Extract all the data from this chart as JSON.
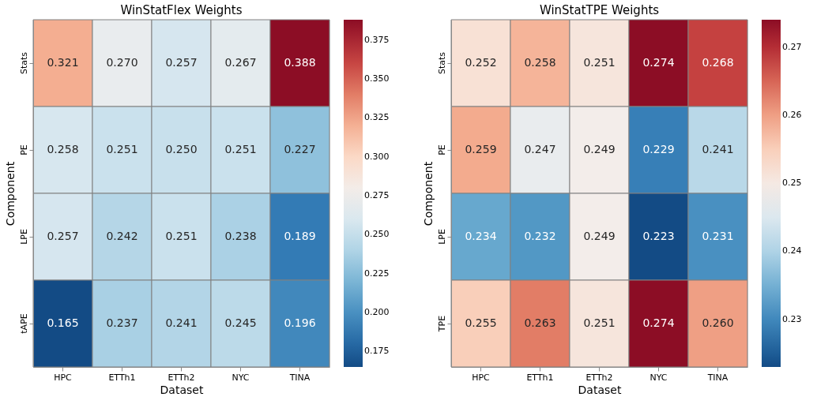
{
  "chart_data": [
    {
      "type": "heatmap",
      "title": "WinStatFlex Weights",
      "xlabel": "Dataset",
      "ylabel": "Component",
      "categories": [
        "HPC",
        "ETTh1",
        "ETTh2",
        "NYC",
        "TINA"
      ],
      "y_categories": [
        "Stats",
        "PE",
        "LPE",
        "tAPE"
      ],
      "cells": [
        [
          0.321,
          0.27,
          0.257,
          0.267,
          0.388
        ],
        [
          0.258,
          0.251,
          0.25,
          0.251,
          0.227
        ],
        [
          0.257,
          0.242,
          0.251,
          0.238,
          0.189
        ],
        [
          0.165,
          0.237,
          0.241,
          0.245,
          0.196
        ]
      ],
      "cell_labels": [
        [
          "0.321",
          "0.270",
          "0.257",
          "0.267",
          "0.388"
        ],
        [
          "0.258",
          "0.251",
          "0.250",
          "0.251",
          "0.227"
        ],
        [
          "0.257",
          "0.242",
          "0.251",
          "0.238",
          "0.189"
        ],
        [
          "0.165",
          "0.237",
          "0.241",
          "0.245",
          "0.196"
        ]
      ],
      "clim": [
        0.165,
        0.388
      ],
      "cticks": [
        0.175,
        {
          "value": 0.2,
          "label": "0.200"
        },
        0.225,
        {
          "value": 0.25,
          "label": "0.250"
        },
        0.275,
        {
          "value": 0.3,
          "label": "0.300"
        },
        0.325,
        {
          "value": 0.35,
          "label": "0.350"
        },
        0.375
      ]
    },
    {
      "type": "heatmap",
      "title": "WinStatTPE Weights",
      "xlabel": "Dataset",
      "ylabel": "Component",
      "categories": [
        "HPC",
        "ETTh1",
        "ETTh2",
        "NYC",
        "TINA"
      ],
      "y_categories": [
        "Stats",
        "PE",
        "LPE",
        "TPE"
      ],
      "cells": [
        [
          0.252,
          0.258,
          0.251,
          0.274,
          0.268
        ],
        [
          0.259,
          0.247,
          0.249,
          0.229,
          0.241
        ],
        [
          0.234,
          0.232,
          0.249,
          0.223,
          0.231
        ],
        [
          0.255,
          0.263,
          0.251,
          0.274,
          0.26
        ]
      ],
      "cell_labels": [
        [
          "0.252",
          "0.258",
          "0.251",
          "0.274",
          "0.268"
        ],
        [
          "0.259",
          "0.247",
          "0.249",
          "0.229",
          "0.241"
        ],
        [
          "0.234",
          "0.232",
          "0.249",
          "0.223",
          "0.231"
        ],
        [
          "0.255",
          "0.263",
          "0.251",
          "0.274",
          "0.260"
        ]
      ],
      "clim": [
        0.223,
        0.274
      ],
      "cticks": [
        0.23,
        0.24,
        0.25,
        0.26,
        0.27
      ]
    }
  ]
}
